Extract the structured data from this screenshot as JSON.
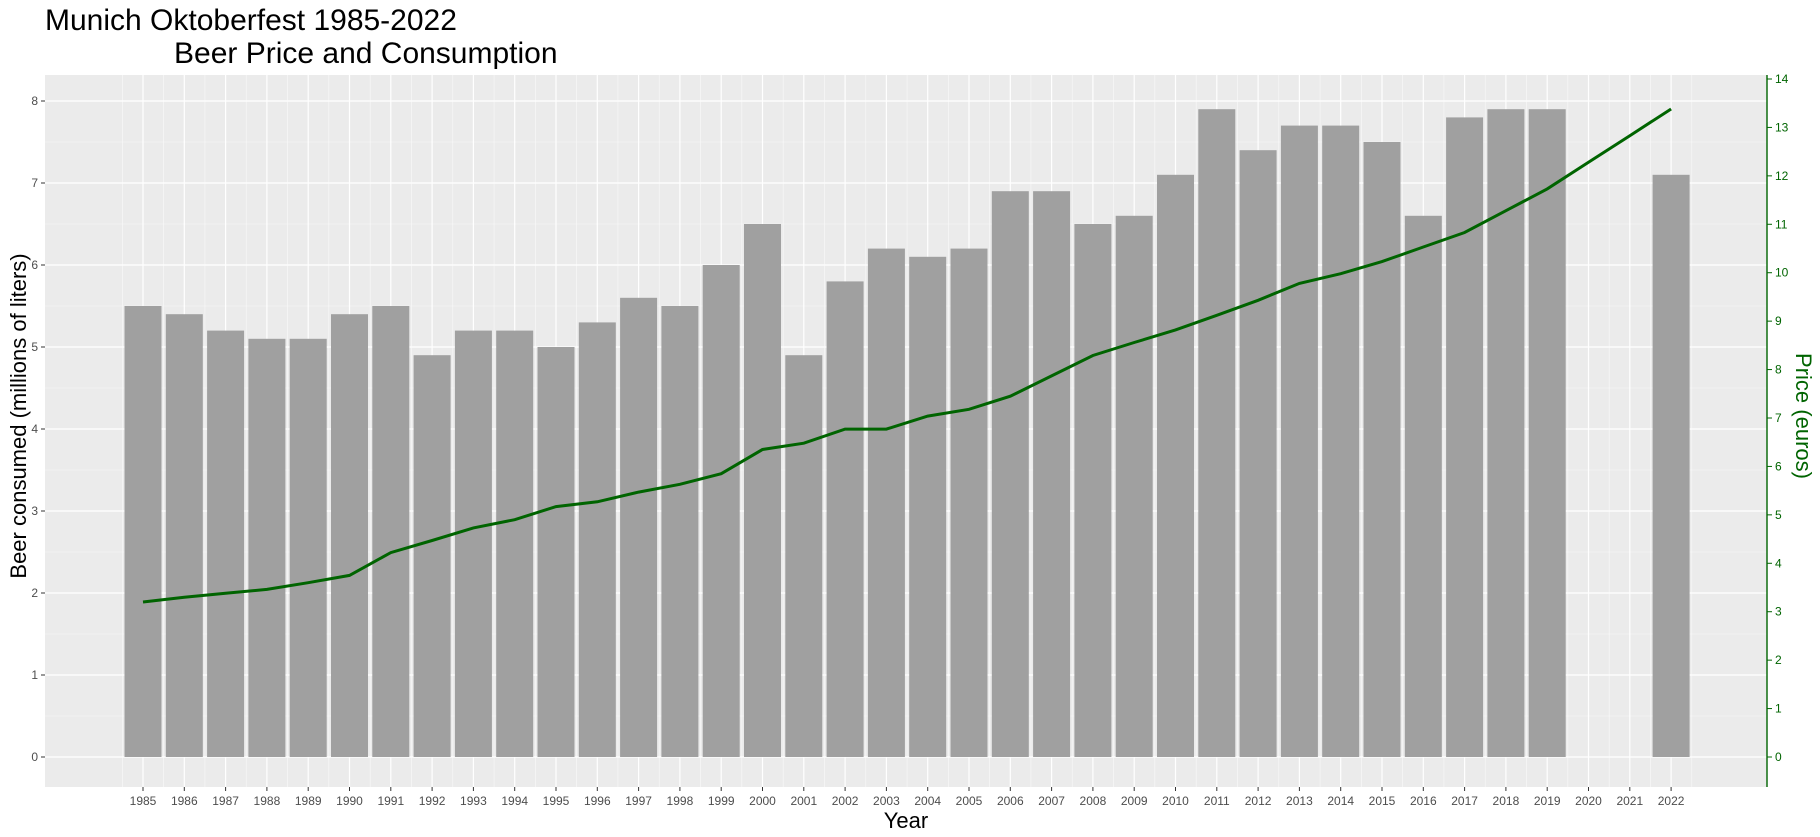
{
  "chart_data": {
    "type": "bar",
    "title_line1": "Munich Oktoberfest 1985-2022",
    "title_line2": "Beer Price and Consumption",
    "xlabel": "Year",
    "ylabel": "Beer consumed (millions of liters)",
    "y2label": "Price (euros)",
    "categories": [
      "1985",
      "1986",
      "1987",
      "1988",
      "1989",
      "1990",
      "1991",
      "1992",
      "1993",
      "1994",
      "1995",
      "1996",
      "1997",
      "1998",
      "1999",
      "2000",
      "2001",
      "2002",
      "2003",
      "2004",
      "2005",
      "2006",
      "2007",
      "2008",
      "2009",
      "2010",
      "2011",
      "2012",
      "2013",
      "2014",
      "2015",
      "2016",
      "2017",
      "2018",
      "2019",
      "2020",
      "2021",
      "2022"
    ],
    "ylim": [
      0,
      8
    ],
    "y_ticks": [
      "0",
      "1",
      "2",
      "3",
      "4",
      "5",
      "6",
      "7",
      "8"
    ],
    "y2lim": [
      0,
      14
    ],
    "y2_ticks": [
      "0",
      "1",
      "2",
      "3",
      "4",
      "5",
      "6",
      "7",
      "8",
      "9",
      "10",
      "11",
      "12",
      "13",
      "14"
    ],
    "grid": true,
    "series": [
      {
        "name": "Beer consumed",
        "type": "bar",
        "axis": "left",
        "values": [
          5.5,
          5.4,
          5.2,
          5.1,
          5.1,
          5.4,
          5.5,
          4.9,
          5.2,
          5.2,
          5.0,
          5.3,
          5.6,
          5.5,
          6.0,
          6.5,
          4.9,
          5.8,
          6.2,
          6.1,
          6.2,
          6.9,
          6.9,
          6.5,
          6.6,
          7.1,
          7.9,
          7.4,
          7.7,
          7.7,
          7.5,
          6.6,
          7.8,
          7.9,
          7.9,
          null,
          null,
          7.1
        ]
      },
      {
        "name": "Price",
        "type": "line",
        "axis": "right",
        "values": [
          3.2,
          3.3,
          3.38,
          3.46,
          3.6,
          3.75,
          4.22,
          4.47,
          4.73,
          4.9,
          5.17,
          5.27,
          5.47,
          5.63,
          5.85,
          6.35,
          6.48,
          6.77,
          6.77,
          7.04,
          7.18,
          7.45,
          7.87,
          8.29,
          8.56,
          8.82,
          9.12,
          9.43,
          9.78,
          9.98,
          10.23,
          10.53,
          10.83,
          11.28,
          11.73,
          12.28,
          12.83,
          13.38
        ]
      }
    ],
    "colors": {
      "panel_background": "#ebebeb",
      "grid_major": "#ffffff",
      "bar_fill": "#a0a0a0",
      "price_line": "#006400",
      "left_axis_text": "#4d4d4d"
    }
  }
}
